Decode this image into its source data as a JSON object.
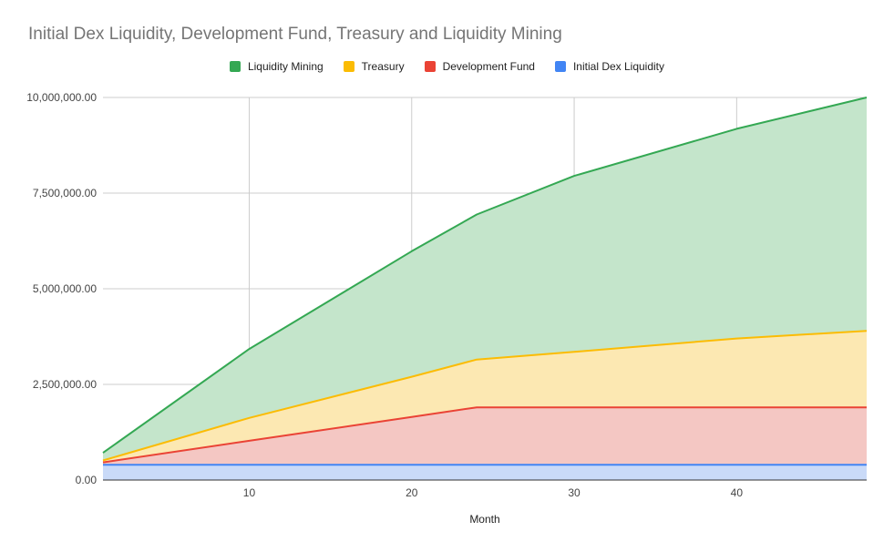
{
  "chart_data": {
    "type": "area",
    "stacked": true,
    "title": "Initial Dex Liquidity, Development Fund, Treasury and Liquidity Mining",
    "xlabel": "Month",
    "ylabel": "",
    "xlim": [
      1,
      48
    ],
    "ylim": [
      0,
      10000000
    ],
    "x_ticks": [
      10,
      20,
      30,
      40
    ],
    "y_ticks": [
      0,
      2500000,
      5000000,
      7500000,
      10000000
    ],
    "x_tick_labels": [
      "10",
      "20",
      "30",
      "40"
    ],
    "y_tick_labels": [
      "0.00",
      "2,500,000.00",
      "5,000,000.00",
      "7,500,000.00",
      "10,000,000.00"
    ],
    "grid": true,
    "legend_position": "top",
    "x": [
      1,
      10,
      20,
      24,
      30,
      40,
      48
    ],
    "series": [
      {
        "name": "Initial Dex Liquidity",
        "color": "#4285f4",
        "fill": "#c9daf8",
        "values": [
          400000,
          400000,
          400000,
          400000,
          400000,
          400000,
          400000
        ]
      },
      {
        "name": "Development Fund",
        "color": "#ea4335",
        "fill": "#f4c7c3",
        "values": [
          62500,
          625000,
          1250000,
          1500000,
          1500000,
          1500000,
          1500000
        ]
      },
      {
        "name": "Treasury",
        "color": "#fbbc04",
        "fill": "#fce8b2",
        "values": [
          50000,
          600000,
          1050000,
          1250000,
          1450000,
          1800000,
          2000000
        ]
      },
      {
        "name": "Liquidity Mining",
        "color": "#34a853",
        "fill": "#c4e5cb",
        "values": [
          200000,
          1800000,
          3280000,
          3790000,
          4600000,
          5480000,
          6100000
        ]
      }
    ],
    "legend_order": [
      "Liquidity Mining",
      "Treasury",
      "Development Fund",
      "Initial Dex Liquidity"
    ]
  }
}
